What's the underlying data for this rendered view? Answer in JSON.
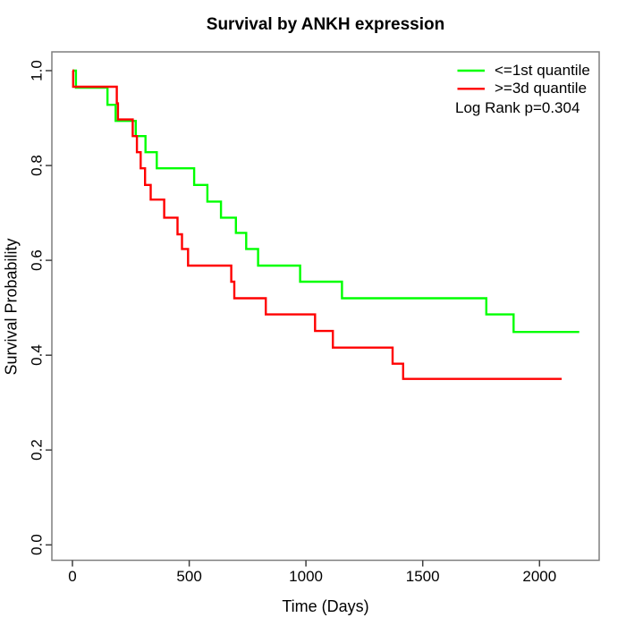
{
  "chart_data": {
    "type": "line",
    "variant": "kaplan_meier_step_plot",
    "title": "Survival by ANKH expression",
    "xlabel": "Time (Days)",
    "ylabel": "Survival Probability",
    "x_ticks": [
      "0",
      "500",
      "1000",
      "1500",
      "2000"
    ],
    "y_ticks": [
      "0.0",
      "0.2",
      "0.4",
      "0.6",
      "0.8",
      "1.0"
    ],
    "xlim": [
      -90,
      2255
    ],
    "ylim": [
      -0.033,
      1.04
    ],
    "grid": false,
    "legend_position": "top-right",
    "annotation": "Log Rank p=0.304",
    "legend": [
      {
        "label": "<=1st quantile",
        "color": "#00ff00"
      },
      {
        "label": ">=3d quantile",
        "color": "#ff0000"
      }
    ],
    "series": [
      {
        "name": "<=1st quantile",
        "color": "#00ff00",
        "end_time": 2170,
        "steps": [
          [
            0,
            1.0
          ],
          [
            15,
            0.964
          ],
          [
            150,
            0.928
          ],
          [
            185,
            0.894
          ],
          [
            271,
            0.862
          ],
          [
            313,
            0.828
          ],
          [
            361,
            0.794
          ],
          [
            521,
            0.759
          ],
          [
            578,
            0.724
          ],
          [
            636,
            0.69
          ],
          [
            700,
            0.658
          ],
          [
            744,
            0.624
          ],
          [
            795,
            0.589
          ],
          [
            975,
            0.555
          ],
          [
            1154,
            0.52
          ],
          [
            1772,
            0.486
          ],
          [
            1889,
            0.449
          ]
        ]
      },
      {
        "name": ">=3d quantile",
        "color": "#ff0000",
        "end_time": 2095,
        "steps": [
          [
            0,
            1.0
          ],
          [
            3,
            0.966
          ],
          [
            190,
            0.931
          ],
          [
            195,
            0.897
          ],
          [
            258,
            0.862
          ],
          [
            276,
            0.828
          ],
          [
            292,
            0.794
          ],
          [
            311,
            0.759
          ],
          [
            335,
            0.728
          ],
          [
            393,
            0.69
          ],
          [
            450,
            0.655
          ],
          [
            469,
            0.624
          ],
          [
            495,
            0.589
          ],
          [
            680,
            0.555
          ],
          [
            693,
            0.52
          ],
          [
            828,
            0.486
          ],
          [
            1039,
            0.451
          ],
          [
            1115,
            0.416
          ],
          [
            1371,
            0.382
          ],
          [
            1416,
            0.35
          ]
        ]
      }
    ]
  }
}
